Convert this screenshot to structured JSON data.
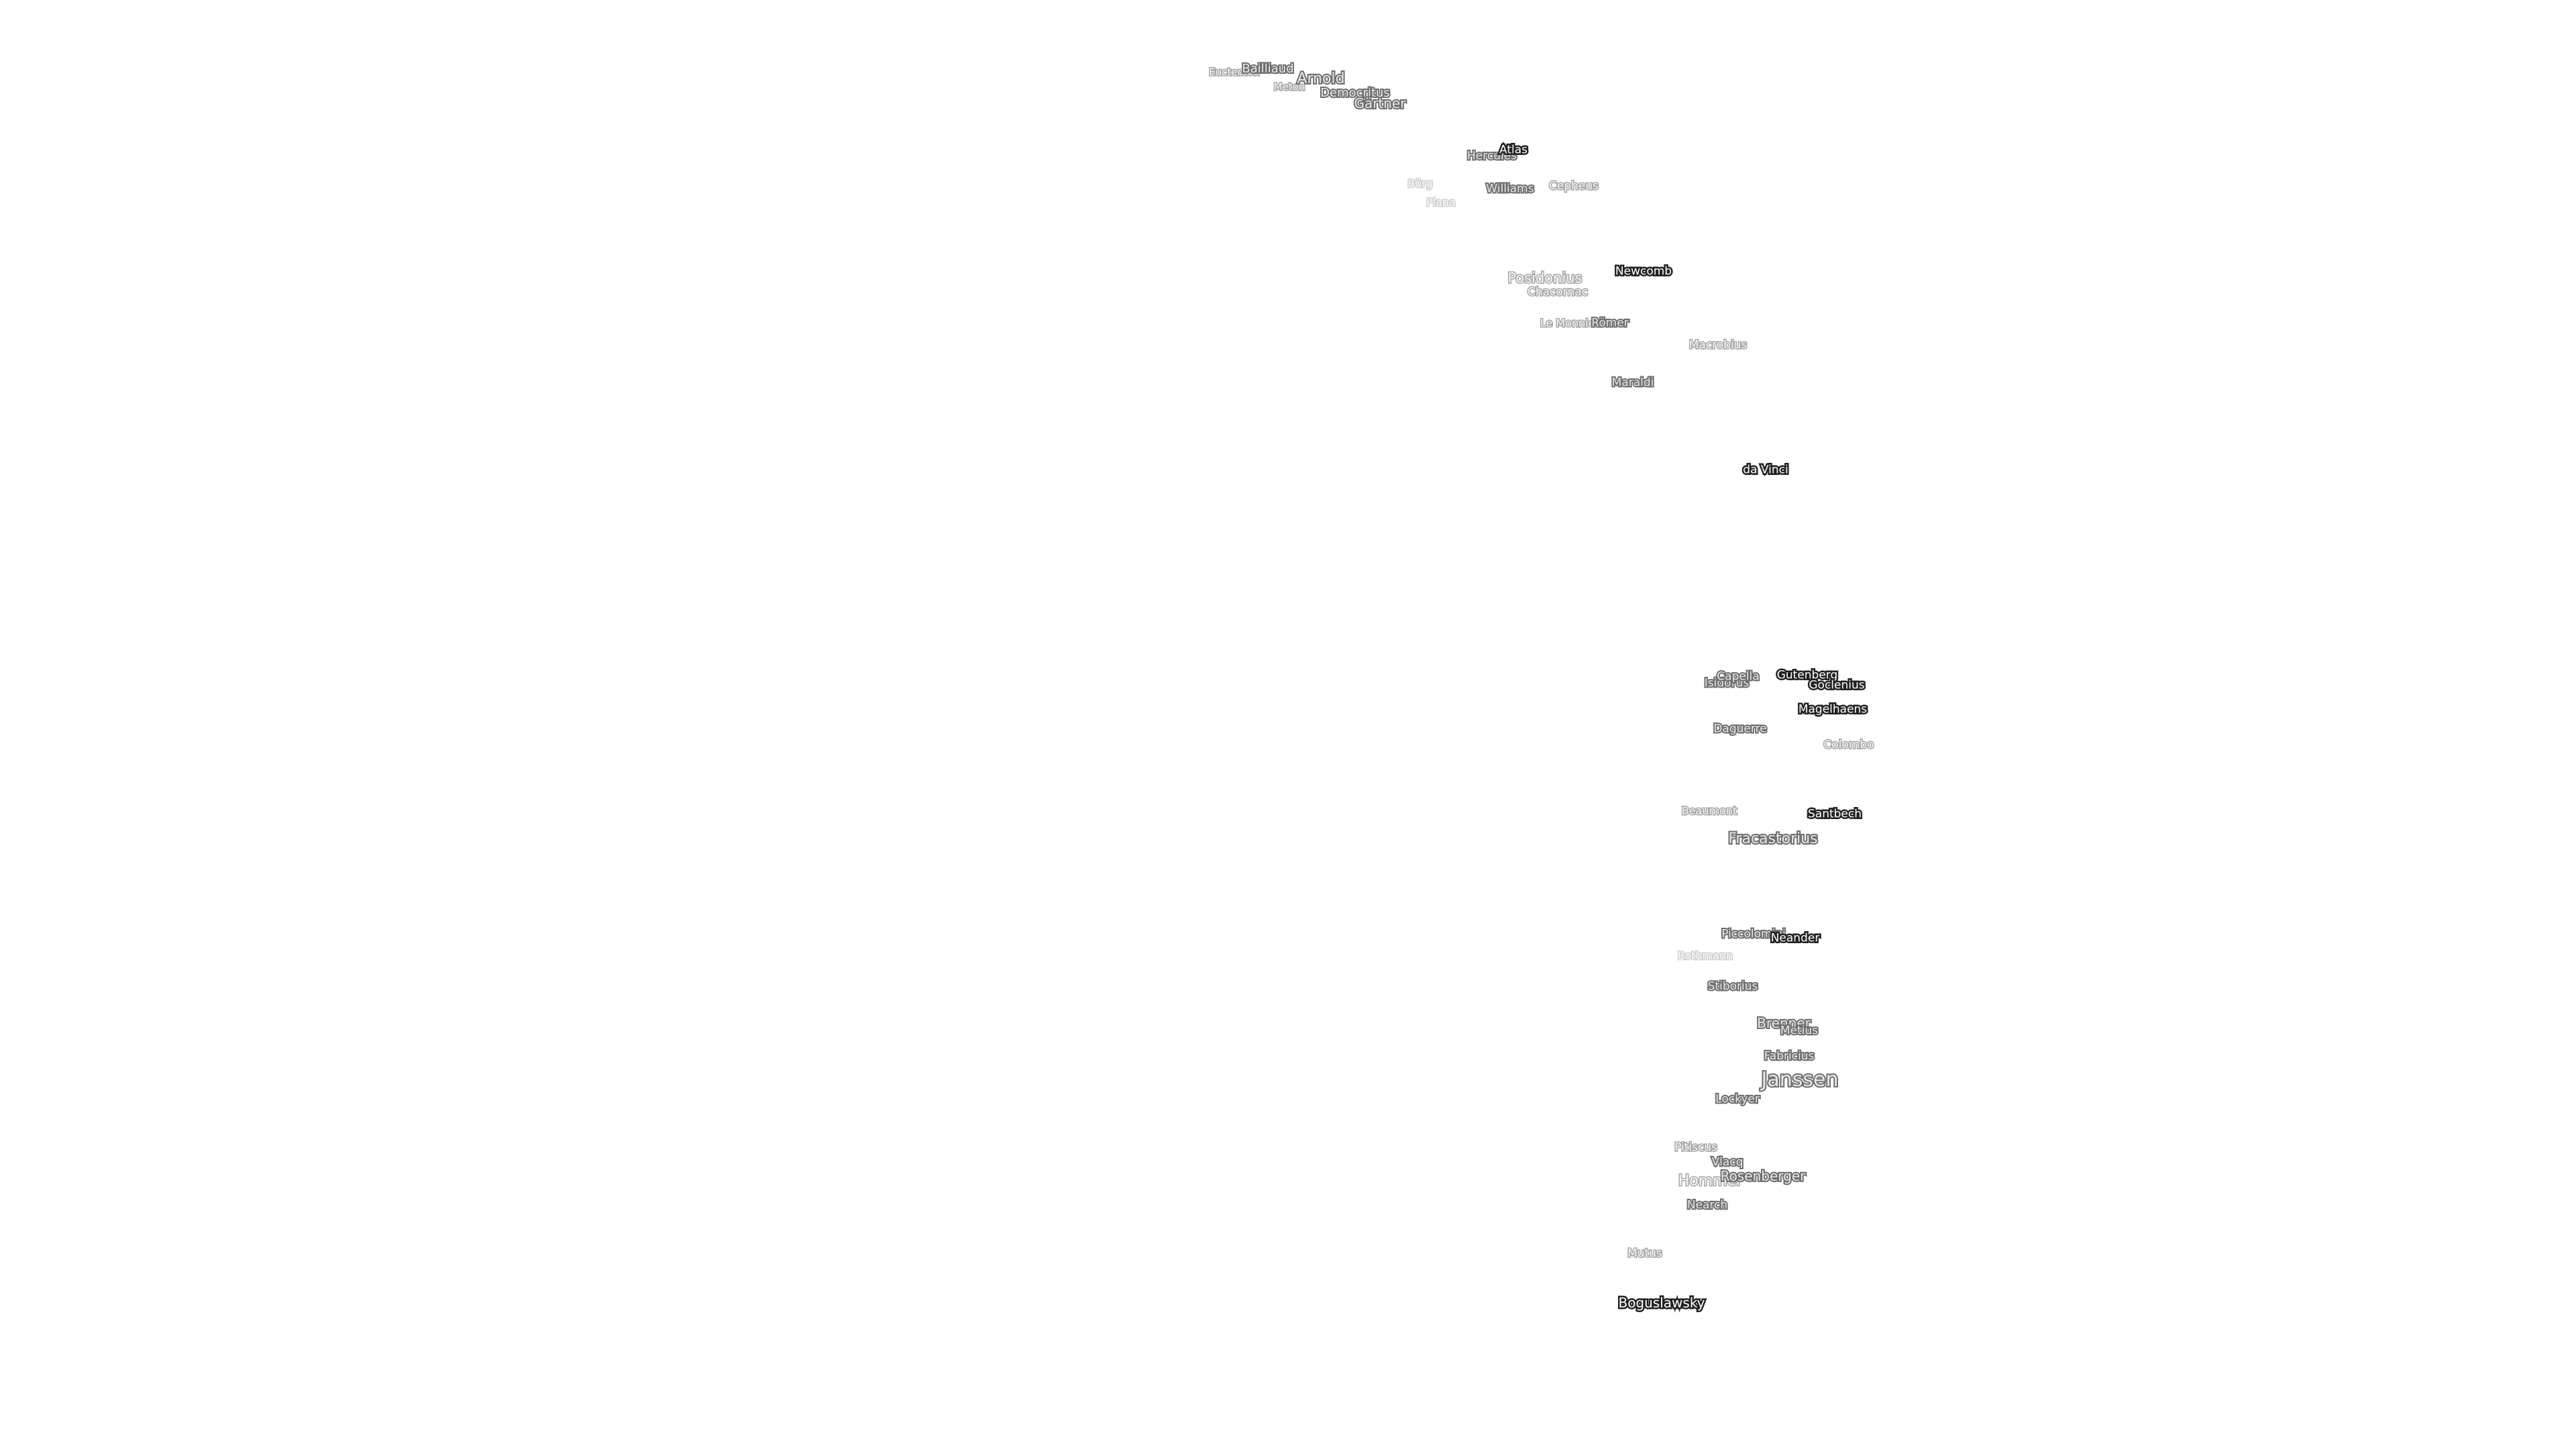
{
  "map": {
    "labels": {
      "euctemon": "Euctemon",
      "bailliaud": "Bailliaud",
      "meton": "Meton",
      "arnold": "Arnold",
      "democritus": "Democritus",
      "gartner": "Gärtner",
      "atlas": "Atlas",
      "hercules": "Hercules",
      "burg": "Bürg",
      "williams": "Williams",
      "cepheus": "Cepheus",
      "plana": "Plana",
      "posidonius": "Posidonius",
      "newcomb": "Newcomb",
      "chacornac": "Chacornac",
      "le_monnier": "Le Monnier",
      "romer": "Römer",
      "macrobius": "Macrobius",
      "maraldi": "Maraldi",
      "da_vinci": "da Vinci",
      "capella": "Capella",
      "isidorus": "Isidorus",
      "gutenberg": "Gutenberg",
      "goclenius": "Goclenius",
      "magelhaens": "Magelhaens",
      "daguerre": "Daguerre",
      "colombo": "Colombo",
      "beaumont": "Beaumont",
      "santbech": "Santbech",
      "fracastorius": "Fracastorius",
      "piccolomini": "Piccolomini",
      "neander": "Neander",
      "rothmann": "Rothmann",
      "stiborius": "Stiborius",
      "brenner": "Brenner",
      "metius": "Metius",
      "fabricius": "Fabricius",
      "janssen": "Janssen",
      "lockyer": "Lockyer",
      "pitiscus": "Pitiscus",
      "vlacq": "Vlacq",
      "rosenberger": "Rosenberger",
      "hommel": "Hommel",
      "nearch": "Nearch",
      "mutus": "Mutus",
      "boguslawsky": "Boguslawsky"
    }
  }
}
